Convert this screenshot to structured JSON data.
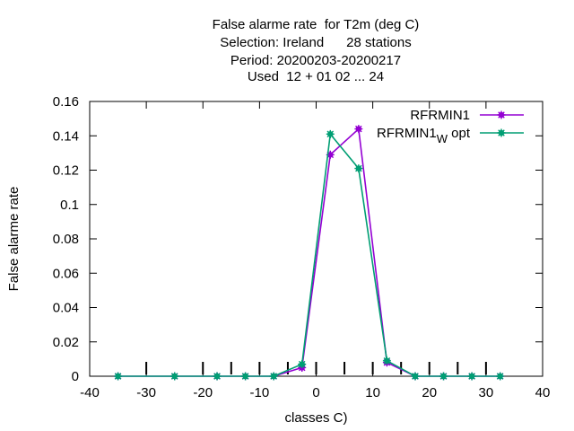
{
  "chart_data": {
    "type": "line",
    "title_lines": [
      "False alarme rate  for T2m (deg C)",
      "Selection: Ireland      28 stations",
      "Period: 20200203-20200217",
      "Used  12 + 01 02 ... 24"
    ],
    "xlabel": "classes C)",
    "ylabel": "False alarme rate",
    "xlim": [
      -40,
      40
    ],
    "ylim": [
      0,
      0.16
    ],
    "xticks": [
      "-40",
      "-30",
      "-20",
      "-10",
      "0",
      "10",
      "20",
      "30",
      "40"
    ],
    "yticks": [
      "0",
      "0.02",
      "0.04",
      "0.06",
      "0.08",
      "0.1",
      "0.12",
      "0.14",
      "0.16"
    ],
    "class_markers": [
      -30,
      -20,
      -15,
      -10,
      -5,
      0,
      5,
      10,
      15,
      20,
      25,
      30
    ],
    "legend_position": "top-right",
    "series": [
      {
        "name": "RFRMIN1",
        "color": "#9400d3",
        "x": [
          -35,
          -25,
          -17.5,
          -12.5,
          -7.5,
          -2.5,
          2.5,
          7.5,
          12.5,
          17.5,
          22.5,
          27.5,
          32.5
        ],
        "y": [
          0,
          0,
          0,
          0,
          0,
          0.005,
          0.129,
          0.144,
          0.008,
          0,
          0,
          0,
          0
        ]
      },
      {
        "name": "RFRMIN1",
        "name_sub": "W",
        "name_suffix": "opt",
        "color": "#009e73",
        "x": [
          -35,
          -25,
          -17.5,
          -12.5,
          -7.5,
          -2.5,
          2.5,
          7.5,
          12.5,
          17.5,
          22.5,
          27.5,
          32.5
        ],
        "y": [
          0,
          0,
          0,
          0,
          0,
          0.007,
          0.141,
          0.121,
          0.009,
          0,
          0,
          0,
          0
        ]
      }
    ]
  }
}
